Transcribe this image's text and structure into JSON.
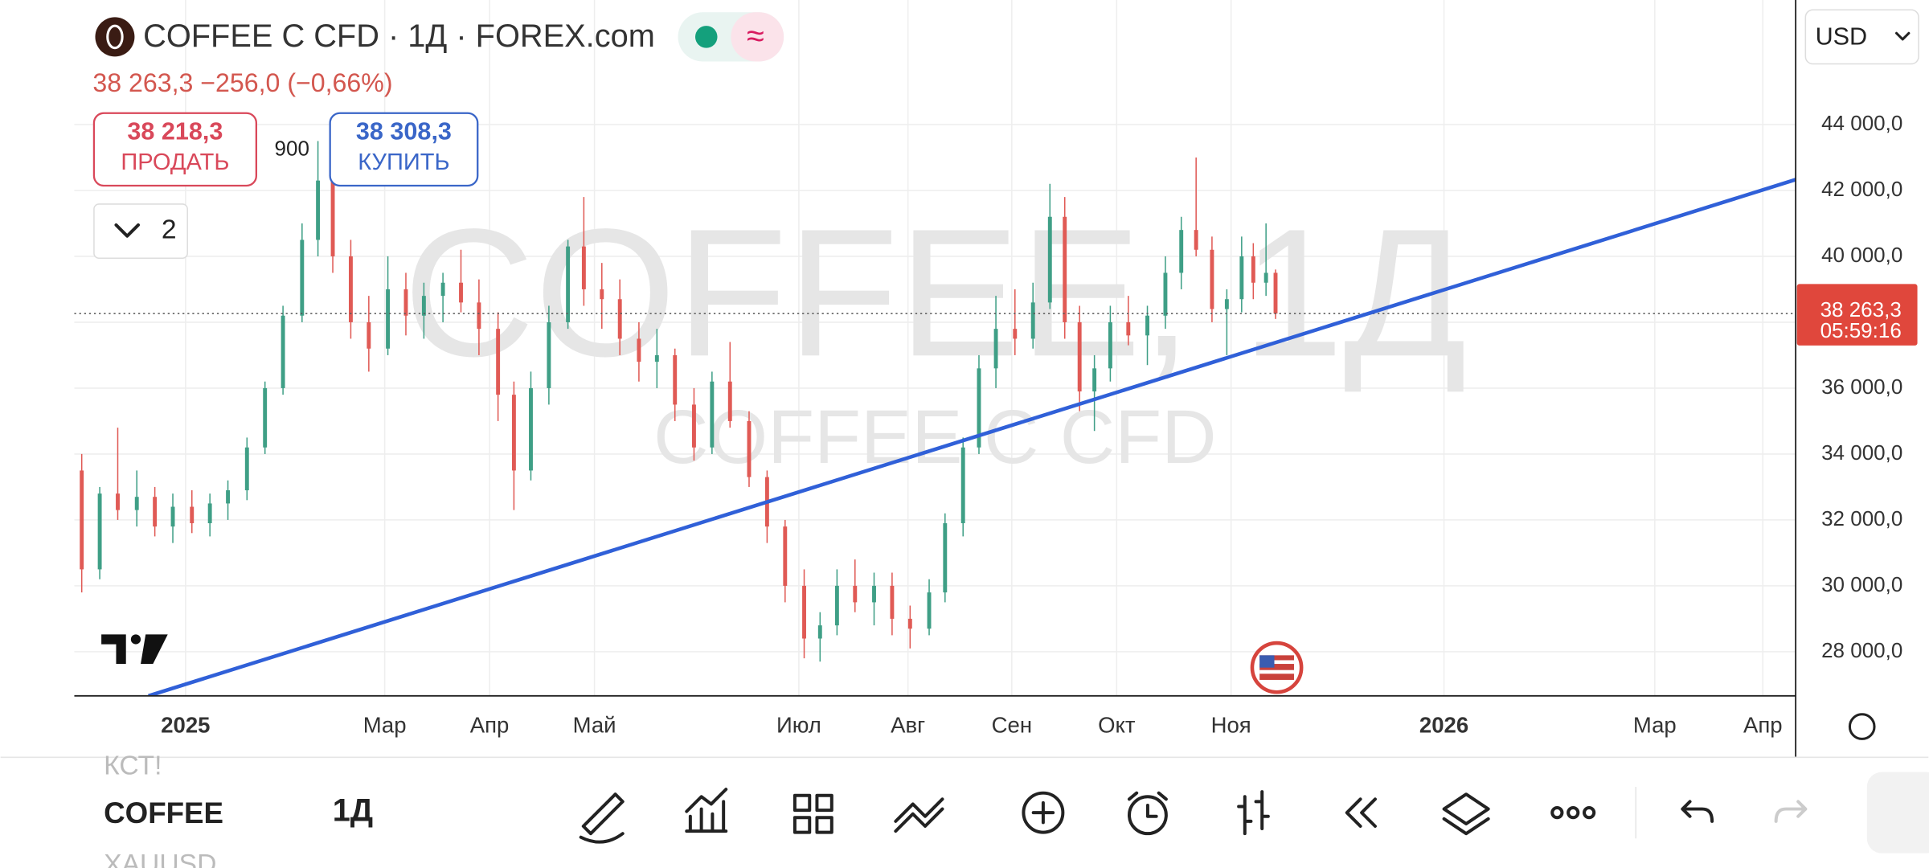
{
  "header": {
    "title": "COFFEE C CFD · 1Д · FOREX.com",
    "quote": "38 263,3  −256,0 (−0,66%)",
    "currency": "USD"
  },
  "trade": {
    "sell_price": "38 218,3",
    "sell": "ПРОДАТЬ",
    "spread": "900",
    "buy_price": "38 308,3",
    "buy": "КУПИТЬ",
    "layers": "2"
  },
  "watermark": {
    "main": "COFFEE, 1Д",
    "sub": "COFFEE C CFD"
  },
  "toolbar": {
    "prev": "КСТ!",
    "symbol": "COFFEE",
    "next": "XAUUSD",
    "interval": "1Д"
  },
  "chart_data": {
    "type": "candlestick",
    "x": [
      -0.98,
      -0.81,
      -0.64,
      -0.46,
      -0.29,
      -0.12,
      0.06,
      0.23,
      0.4,
      0.58,
      0.75,
      0.92,
      1.1,
      1.25,
      1.39,
      1.56,
      1.73,
      1.91,
      2.08,
      2.25,
      2.43,
      2.6,
      2.77,
      2.95,
      3.1,
      3.26,
      3.43,
      3.61,
      3.76,
      3.93,
      4.1,
      4.28,
      4.45,
      4.62,
      4.8,
      4.97,
      5.14,
      5.32,
      5.49,
      5.66,
      5.84,
      5.99,
      6.15,
      6.32,
      6.5,
      6.67,
      6.84,
      7.02,
      7.17,
      7.34,
      7.49,
      7.65,
      7.83,
      8.0,
      8.16,
      8.3,
      8.44,
      8.58,
      8.73,
      8.9,
      9.08,
      9.25,
      9.4,
      9.54,
      9.69,
      9.83,
      9.97,
      10.08,
      10.2,
      10.29
    ],
    "open": [
      33500,
      30500,
      32800,
      32300,
      32700,
      31800,
      32400,
      31900,
      32500,
      32900,
      34200,
      36000,
      38200,
      40500,
      42300,
      40000,
      38000,
      37200,
      39000,
      38200,
      38800,
      39200,
      38600,
      37800,
      35800,
      33500,
      36000,
      38000,
      40300,
      39000,
      38700,
      37500,
      36800,
      37000,
      35500,
      34200,
      36200,
      35000,
      33300,
      31800,
      30000,
      28400,
      28800,
      30000,
      29500,
      30000,
      29000,
      28700,
      29800,
      31900,
      34200,
      36600,
      37800,
      37500,
      38600,
      41200,
      38000,
      35900,
      36600,
      38000,
      37600,
      38200,
      39500,
      40800,
      40200,
      38400,
      38700,
      40000,
      39200,
      39500
    ],
    "high": [
      34000,
      33000,
      34800,
      33500,
      33000,
      32800,
      32900,
      32800,
      33200,
      34500,
      36200,
      38500,
      41000,
      43500,
      43000,
      40500,
      38800,
      40000,
      39500,
      39200,
      39500,
      40200,
      39300,
      38300,
      36200,
      36500,
      38500,
      40500,
      41800,
      39800,
      39300,
      38000,
      37800,
      37200,
      36000,
      36500,
      37400,
      35300,
      33500,
      32000,
      30500,
      29200,
      30500,
      30800,
      30400,
      30400,
      29400,
      30200,
      32200,
      34500,
      37000,
      38800,
      39000,
      39200,
      42200,
      41800,
      38500,
      37000,
      38500,
      38800,
      38500,
      40000,
      41200,
      43000,
      40600,
      39000,
      40600,
      40400,
      41000,
      39600
    ],
    "low": [
      29800,
      30200,
      32000,
      31800,
      31500,
      31300,
      31600,
      31500,
      32000,
      32600,
      34000,
      35800,
      38000,
      40000,
      39500,
      37500,
      36500,
      37000,
      37600,
      37500,
      38000,
      38300,
      37000,
      35000,
      32300,
      33200,
      35500,
      37800,
      38500,
      37800,
      37000,
      36200,
      36000,
      35000,
      33800,
      34000,
      34800,
      33000,
      31300,
      29500,
      27800,
      27700,
      28500,
      29200,
      28800,
      28500,
      28100,
      28500,
      29500,
      31500,
      34000,
      36000,
      37000,
      37200,
      38400,
      37500,
      35300,
      34700,
      36200,
      37300,
      36700,
      37800,
      39000,
      40000,
      38000,
      37000,
      38300,
      38700,
      38800,
      38100
    ],
    "close": [
      30500,
      32800,
      32300,
      32700,
      31800,
      32400,
      31900,
      32500,
      32900,
      34200,
      36000,
      38200,
      40500,
      42300,
      40000,
      38000,
      37200,
      39000,
      38200,
      38800,
      39200,
      38600,
      37800,
      35800,
      33500,
      36000,
      38000,
      40300,
      39000,
      38700,
      37500,
      36800,
      37000,
      35500,
      34200,
      36200,
      35000,
      33300,
      31800,
      30000,
      28400,
      28800,
      30000,
      29500,
      30000,
      29000,
      28700,
      29800,
      31900,
      34200,
      36600,
      37800,
      37500,
      38600,
      41200,
      38000,
      35900,
      36600,
      38000,
      37600,
      38200,
      39500,
      40800,
      40200,
      38400,
      38700,
      40000,
      39200,
      39500,
      38263.3
    ],
    "up_color": "#3f9f86",
    "down_color": "#e05a55",
    "ylim": [
      26660,
      47780
    ],
    "yticks": [
      {
        "value": 28000,
        "label": "28 000,0"
      },
      {
        "value": 30000,
        "label": "30 000,0"
      },
      {
        "value": 32000,
        "label": "32 000,0"
      },
      {
        "value": 34000,
        "label": "34 000,0"
      },
      {
        "value": 36000,
        "label": "36 000,0"
      },
      {
        "value": 38000,
        "label": "38 000,0"
      },
      {
        "value": 40000,
        "label": "40 000,0"
      },
      {
        "value": 42000,
        "label": "42 000,0"
      },
      {
        "value": 44000,
        "label": "44 000,0"
      }
    ],
    "xlim": [
      -1.05,
      15.2
    ],
    "xticks": [
      {
        "value": 0,
        "label": "2025"
      },
      {
        "value": 1.88,
        "label": "Мар"
      },
      {
        "value": 2.87,
        "label": "Апр"
      },
      {
        "value": 3.86,
        "label": "Май"
      },
      {
        "value": 5.79,
        "label": "Июл"
      },
      {
        "value": 6.82,
        "label": "Авг"
      },
      {
        "value": 7.8,
        "label": "Сен"
      },
      {
        "value": 8.79,
        "label": "Окт"
      },
      {
        "value": 9.87,
        "label": "Ноя"
      },
      {
        "value": 11.88,
        "label": "2026"
      },
      {
        "value": 13.87,
        "label": "Мар"
      },
      {
        "value": 14.89,
        "label": "Апр"
      }
    ],
    "grid": true,
    "last_price": {
      "value": 38263.3,
      "label": "38 263,3"
    },
    "countdown": "05:59:16",
    "trendline": {
      "x": [
        -0.35,
        15.2
      ],
      "values": [
        26660,
        42330
      ],
      "color": "#3060d8"
    }
  }
}
